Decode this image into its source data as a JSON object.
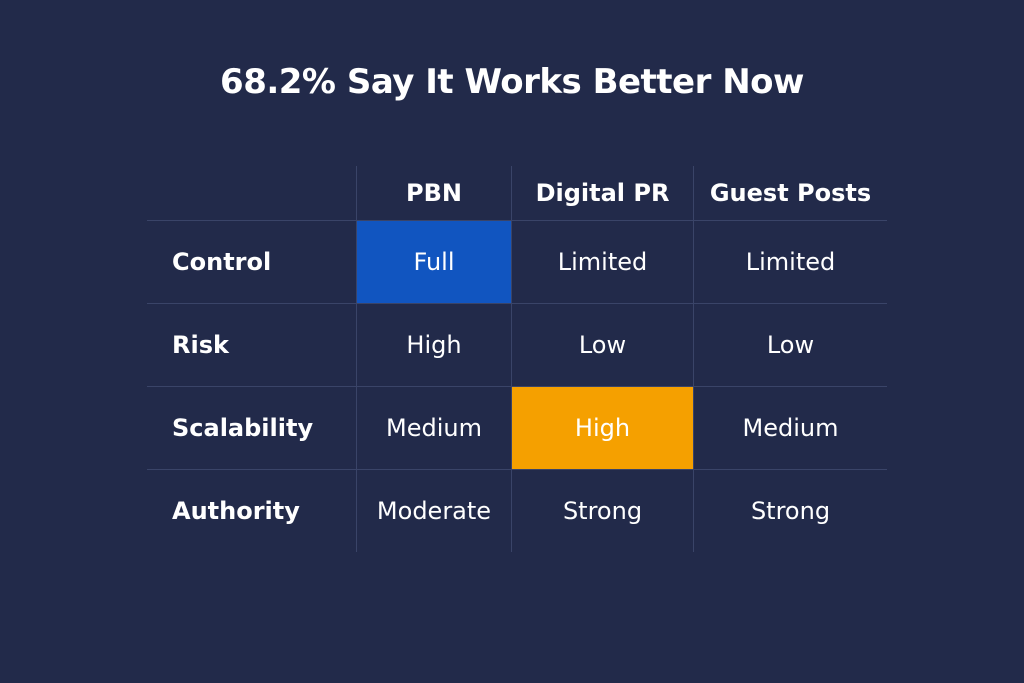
{
  "title": "68.2% Say It Works Better Now",
  "colors": {
    "background": "#222a4a",
    "blue_highlight": "#1155c0",
    "orange_highlight": "#f5a000",
    "grid": "#3a4468"
  },
  "table": {
    "columns": [
      "",
      "PBN",
      "Digital PR",
      "Guest Posts"
    ],
    "rows": [
      {
        "label": "Control",
        "values": [
          "Full",
          "Limited",
          "Limited"
        ]
      },
      {
        "label": "Risk",
        "values": [
          "High",
          "Low",
          "Low"
        ]
      },
      {
        "label": "Scalability",
        "values": [
          "Medium",
          "High",
          "Medium"
        ]
      },
      {
        "label": "Authority",
        "values": [
          "Moderate",
          "Strong",
          "Strong"
        ]
      }
    ],
    "highlights": [
      {
        "row": 0,
        "col": 0,
        "color": "#1155c0"
      },
      {
        "row": 2,
        "col": 1,
        "color": "#f5a000"
      }
    ]
  }
}
